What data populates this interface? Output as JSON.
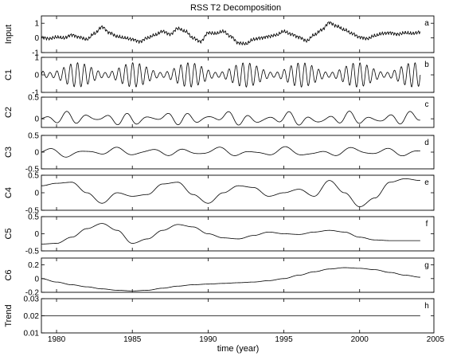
{
  "chart_data": {
    "type": "line",
    "title": "RSS T2 Decomposition",
    "xlabel": "time (year)",
    "xlim": [
      1979,
      2004.9
    ],
    "xticks": [
      1980,
      1985,
      1990,
      1995,
      2000,
      2005
    ],
    "panels": [
      {
        "id": "input",
        "ylabel": "Input",
        "label": "a",
        "ylim": [
          -1,
          1.5
        ],
        "yticks": [
          -1,
          0,
          1
        ],
        "x": [
          1979,
          1979.5,
          1980,
          1980.5,
          1981,
          1981.5,
          1982,
          1982.5,
          1983,
          1983.5,
          1984,
          1984.5,
          1985,
          1985.5,
          1986,
          1986.5,
          1987,
          1987.5,
          1988,
          1988.5,
          1989,
          1989.5,
          1990,
          1990.5,
          1991,
          1991.5,
          1992,
          1992.5,
          1993,
          1993.5,
          1994,
          1994.5,
          1995,
          1995.5,
          1996,
          1996.5,
          1997,
          1997.5,
          1998,
          1998.5,
          1999,
          1999.5,
          2000,
          2000.5,
          2001,
          2001.5,
          2002,
          2002.5,
          2003,
          2003.5,
          2004
        ],
        "y": [
          0.05,
          -0.05,
          0.05,
          0.0,
          0.2,
          0.05,
          -0.1,
          0.3,
          0.75,
          0.35,
          0.1,
          0.0,
          -0.1,
          -0.25,
          0.0,
          0.2,
          0.45,
          0.25,
          0.65,
          0.45,
          0.0,
          -0.25,
          0.35,
          0.3,
          0.45,
          0.1,
          -0.35,
          -0.4,
          -0.1,
          0.0,
          0.1,
          0.2,
          0.45,
          0.25,
          0.05,
          -0.2,
          0.2,
          0.55,
          1.05,
          0.8,
          0.55,
          0.3,
          0.05,
          -0.05,
          0.15,
          0.3,
          0.35,
          0.25,
          0.35,
          0.3,
          0.4
        ]
      },
      {
        "id": "c1",
        "ylabel": "C1",
        "label": "b",
        "ylim": [
          -1,
          1
        ],
        "yticks": [
          -1,
          0,
          1
        ],
        "x": [
          1979,
          1980,
          1981,
          1982,
          1983,
          1984,
          1985,
          1986,
          1987,
          1988,
          1989,
          1990,
          1991,
          1992,
          1993,
          1994,
          1995,
          1996,
          1997,
          1998,
          1999,
          2000,
          2001,
          2002,
          2003,
          2004
        ],
        "y": [
          0.4,
          -0.5,
          0.6,
          -0.4,
          0.5,
          -0.5,
          0.3,
          -0.4,
          0.5,
          -0.6,
          0.4,
          -0.3,
          0.6,
          -0.5,
          0.4,
          -0.6,
          0.5,
          -0.4,
          0.7,
          -0.5,
          0.4,
          -0.3,
          0.6,
          -0.5,
          0.5,
          -0.4
        ],
        "amplitude_envelope": 0.7,
        "cycles_per_year": 2.2
      },
      {
        "id": "c2",
        "ylabel": "C2",
        "label": "c",
        "ylim": [
          -0.2,
          0.5
        ],
        "yticks": [
          -0.5,
          0,
          0.5
        ],
        "x": [
          1979,
          1981,
          1983,
          1985,
          1987,
          1989,
          1991,
          1993,
          1995,
          1997,
          1999,
          2001,
          2003,
          2004
        ],
        "y": [
          0.0,
          0.1,
          0.05,
          -0.1,
          0.12,
          -0.05,
          0.18,
          -0.15,
          0.1,
          -0.18,
          0.12,
          -0.08,
          0.1,
          0.2
        ],
        "amplitude_envelope": 0.15,
        "cycles_per_year": 0.75
      },
      {
        "id": "c3",
        "ylabel": "C3",
        "label": "d",
        "ylim": [
          -0.5,
          0.5
        ],
        "yticks": [
          -0.5,
          0,
          0.5
        ],
        "x": [
          1979,
          1981,
          1983,
          1985,
          1987,
          1989,
          1991,
          1993,
          1995,
          1997,
          1999,
          2001,
          2003,
          2004
        ],
        "y": [
          0.0,
          -0.1,
          0.1,
          -0.05,
          0.15,
          -0.1,
          0.15,
          -0.1,
          0.1,
          -0.2,
          0.2,
          -0.05,
          0.05,
          0.0
        ],
        "amplitude_envelope": 0.14,
        "cycles_per_year": 0.45
      },
      {
        "id": "c4",
        "ylabel": "C4",
        "label": "e",
        "ylim": [
          -0.5,
          0.5
        ],
        "yticks": [
          -0.5,
          0,
          0.5
        ],
        "x": [
          1979,
          1980,
          1981,
          1982,
          1983,
          1984,
          1985,
          1986,
          1987,
          1988,
          1989,
          1990,
          1991,
          1992,
          1993,
          1994,
          1995,
          1996,
          1997,
          1998,
          1999,
          2000,
          2001,
          2002,
          2003,
          2004
        ],
        "y": [
          0.2,
          0.27,
          0.3,
          0.0,
          -0.3,
          0.0,
          -0.1,
          -0.05,
          0.25,
          0.3,
          -0.05,
          -0.3,
          0.0,
          0.2,
          0.15,
          -0.1,
          0.0,
          0.1,
          -0.1,
          0.35,
          0.0,
          -0.4,
          -0.15,
          0.3,
          0.4,
          0.35
        ]
      },
      {
        "id": "c5",
        "ylabel": "C5",
        "label": "f",
        "ylim": [
          -0.5,
          0.5
        ],
        "yticks": [
          -0.5,
          0,
          0.5
        ],
        "x": [
          1979,
          1980,
          1981,
          1982,
          1983,
          1984,
          1985,
          1986,
          1987,
          1988,
          1989,
          1990,
          1991,
          1992,
          1993,
          1994,
          1995,
          1996,
          1997,
          1998,
          1999,
          2000,
          2001,
          2002,
          2003,
          2004
        ],
        "y": [
          -0.3,
          -0.28,
          -0.1,
          0.15,
          0.3,
          0.1,
          -0.28,
          -0.15,
          0.1,
          0.27,
          0.2,
          0.0,
          -0.12,
          -0.15,
          -0.05,
          0.05,
          0.0,
          -0.02,
          0.05,
          0.1,
          0.05,
          -0.1,
          -0.18,
          -0.2,
          -0.2,
          -0.2
        ]
      },
      {
        "id": "c6",
        "ylabel": "C6",
        "label": "g",
        "ylim": [
          -0.2,
          0.3
        ],
        "yticks": [
          -0.2,
          0,
          0.2
        ],
        "x": [
          1979,
          1980,
          1981,
          1982,
          1983,
          1984,
          1985,
          1986,
          1987,
          1988,
          1989,
          1990,
          1991,
          1992,
          1993,
          1994,
          1995,
          1996,
          1997,
          1998,
          1999,
          2000,
          2001,
          2002,
          2003,
          2004
        ],
        "y": [
          0.0,
          -0.05,
          -0.09,
          -0.12,
          -0.15,
          -0.17,
          -0.18,
          -0.17,
          -0.14,
          -0.11,
          -0.09,
          -0.08,
          -0.07,
          -0.06,
          -0.05,
          -0.03,
          0.0,
          0.05,
          0.1,
          0.14,
          0.16,
          0.15,
          0.13,
          0.09,
          0.05,
          0.02
        ]
      },
      {
        "id": "trend",
        "ylabel": "Trend",
        "label": "h",
        "ylim": [
          0.01,
          0.03
        ],
        "yticks": [
          0.01,
          0.02,
          0.03
        ],
        "x": [
          1979,
          2004
        ],
        "y": [
          0.02,
          0.02
        ]
      }
    ]
  }
}
